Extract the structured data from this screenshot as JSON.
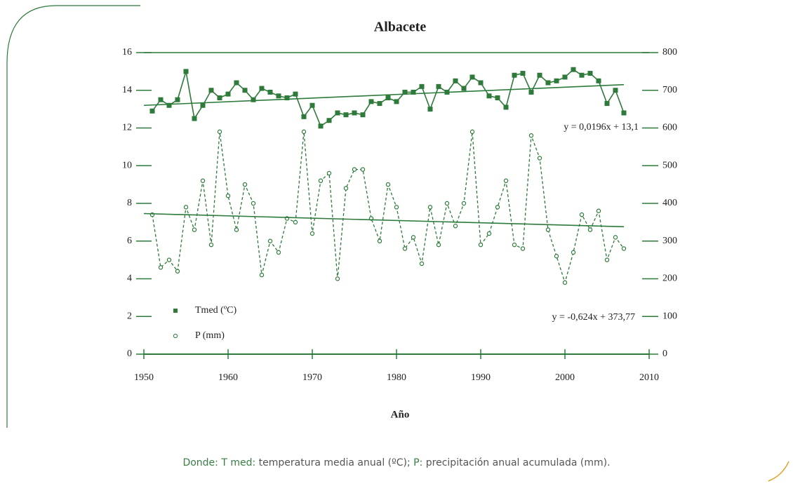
{
  "chart_data": {
    "type": "line",
    "title": "Albacete",
    "xlabel": "Año",
    "x": [
      1951,
      1952,
      1953,
      1954,
      1955,
      1956,
      1957,
      1958,
      1959,
      1960,
      1961,
      1962,
      1963,
      1964,
      1965,
      1966,
      1967,
      1968,
      1969,
      1970,
      1971,
      1972,
      1973,
      1974,
      1975,
      1976,
      1977,
      1978,
      1979,
      1980,
      1981,
      1982,
      1983,
      1984,
      1985,
      1986,
      1987,
      1988,
      1989,
      1990,
      1991,
      1992,
      1993,
      1994,
      1995,
      1996,
      1997,
      1998,
      1999,
      2000,
      2001,
      2002,
      2003,
      2004,
      2005,
      2006,
      2007
    ],
    "series": [
      {
        "name": "Tmed (ºC)",
        "color": "#2d7a3a",
        "axis": "y",
        "marker": "square",
        "dashed": false,
        "values": [
          12.9,
          13.5,
          13.2,
          13.5,
          15.0,
          12.5,
          13.2,
          14.0,
          13.6,
          13.8,
          14.4,
          14.0,
          13.5,
          14.1,
          13.9,
          13.7,
          13.6,
          13.8,
          12.6,
          13.2,
          12.1,
          12.4,
          12.8,
          12.7,
          12.8,
          12.7,
          13.4,
          13.3,
          13.6,
          13.4,
          13.9,
          13.9,
          14.2,
          13.0,
          14.2,
          13.9,
          14.5,
          14.1,
          14.7,
          14.4,
          13.7,
          13.6,
          13.1,
          14.8,
          14.9,
          13.9,
          14.8,
          14.4,
          14.5,
          14.7,
          15.1,
          14.8,
          14.9,
          14.5,
          13.3,
          14.0,
          12.8
        ]
      },
      {
        "name": "P (mm)",
        "color": "#2d7a3a",
        "axis": "y2",
        "marker": "circle",
        "dashed": true,
        "values": [
          370,
          230,
          250,
          220,
          390,
          330,
          460,
          290,
          590,
          420,
          330,
          450,
          400,
          210,
          300,
          270,
          360,
          350,
          590,
          320,
          460,
          480,
          200,
          440,
          490,
          490,
          360,
          300,
          450,
          390,
          280,
          310,
          240,
          390,
          290,
          400,
          340,
          400,
          590,
          290,
          320,
          390,
          460,
          290,
          280,
          580,
          520,
          330,
          260,
          190,
          270,
          370,
          330,
          380,
          250,
          310,
          280
        ]
      }
    ],
    "trendlines": [
      {
        "axis": "y",
        "x": [
          1950,
          2007
        ],
        "values": [
          13.2,
          14.3
        ],
        "label": "y = 0,0196x + 13,1"
      },
      {
        "axis": "y2",
        "x": [
          1950,
          2007
        ],
        "values": [
          373,
          338
        ],
        "label": "y = -0,624x + 373,77"
      }
    ],
    "xlim": [
      1950,
      2010
    ],
    "xticks": [
      1950,
      1960,
      1970,
      1980,
      1990,
      2000,
      2010
    ],
    "ylim": [
      0,
      16
    ],
    "yticks": [
      0,
      2,
      4,
      6,
      8,
      10,
      12,
      14,
      16
    ],
    "y2lim": [
      0,
      800
    ],
    "y2ticks": [
      0,
      100,
      200,
      300,
      400,
      500,
      600,
      700,
      800
    ],
    "legend": "lower-left"
  },
  "caption": {
    "parts": [
      "Donde:",
      "T med:",
      "temperatura media anual (ºC);",
      "P:",
      "precipitación anual acumulada (mm)."
    ]
  }
}
